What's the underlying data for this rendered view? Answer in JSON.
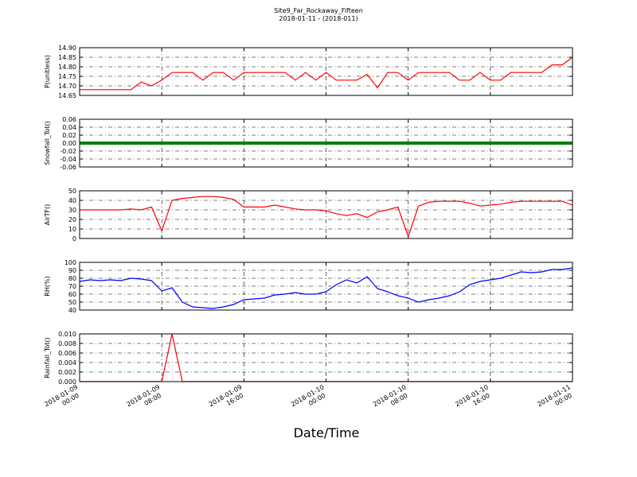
{
  "title": "Site9_Far_Rockaway_Fifteen",
  "subtitle": "2018-01-11 - (2018-011)",
  "xlabel": "Date/Time",
  "chart_data": [
    {
      "type": "line",
      "ylabel": "P(unitless)",
      "color": "#ff0000",
      "x": [
        "2018-01-09 00:00",
        "2018-01-09 01:00",
        "2018-01-09 02:00",
        "2018-01-09 03:00",
        "2018-01-09 04:00",
        "2018-01-09 05:00",
        "2018-01-09 06:00",
        "2018-01-09 07:00",
        "2018-01-09 08:00",
        "2018-01-09 09:00",
        "2018-01-09 10:00",
        "2018-01-09 11:00",
        "2018-01-09 12:00",
        "2018-01-09 13:00",
        "2018-01-09 14:00",
        "2018-01-09 15:00",
        "2018-01-09 16:00",
        "2018-01-09 17:00",
        "2018-01-09 18:00",
        "2018-01-09 19:00",
        "2018-01-09 20:00",
        "2018-01-09 21:00",
        "2018-01-09 22:00",
        "2018-01-09 23:00",
        "2018-01-10 00:00",
        "2018-01-10 01:00",
        "2018-01-10 02:00",
        "2018-01-10 03:00",
        "2018-01-10 04:00",
        "2018-01-10 05:00",
        "2018-01-10 06:00",
        "2018-01-10 07:00",
        "2018-01-10 08:00",
        "2018-01-10 09:00",
        "2018-01-10 10:00",
        "2018-01-10 11:00",
        "2018-01-10 12:00",
        "2018-01-10 13:00",
        "2018-01-10 14:00",
        "2018-01-10 15:00",
        "2018-01-10 16:00",
        "2018-01-10 17:00",
        "2018-01-10 18:00",
        "2018-01-10 19:00",
        "2018-01-10 20:00",
        "2018-01-10 21:00",
        "2018-01-10 22:00",
        "2018-01-10 23:00",
        "2018-01-11 00:00"
      ],
      "values": [
        14.68,
        14.68,
        14.68,
        14.68,
        14.68,
        14.68,
        14.72,
        14.7,
        14.73,
        14.77,
        14.77,
        14.77,
        14.73,
        14.77,
        14.77,
        14.73,
        14.77,
        14.77,
        14.77,
        14.77,
        14.77,
        14.73,
        14.77,
        14.73,
        14.77,
        14.73,
        14.73,
        14.73,
        14.76,
        14.69,
        14.77,
        14.77,
        14.73,
        14.77,
        14.77,
        14.77,
        14.77,
        14.73,
        14.73,
        14.77,
        14.73,
        14.73,
        14.77,
        14.77,
        14.77,
        14.77,
        14.81,
        14.81,
        14.85
      ],
      "xlim": [
        "2018-01-09 00:00",
        "2018-01-11 00:00"
      ],
      "ylim": [
        14.65,
        14.9
      ],
      "yticks": [
        14.65,
        {
          "value": 14.7,
          "label": "14.70"
        },
        14.75,
        {
          "value": 14.8,
          "label": "14.80"
        },
        14.85,
        {
          "value": 14.9,
          "label": "14.90"
        }
      ],
      "grid": true
    },
    {
      "type": "line",
      "ylabel": "Snowfall_Tot()",
      "color": "#008000",
      "x": [
        "2018-01-09 00:00",
        "2018-01-09 01:00",
        "2018-01-09 02:00",
        "2018-01-09 03:00",
        "2018-01-09 04:00",
        "2018-01-09 05:00",
        "2018-01-09 06:00",
        "2018-01-09 07:00",
        "2018-01-09 08:00",
        "2018-01-09 09:00",
        "2018-01-09 10:00",
        "2018-01-09 11:00",
        "2018-01-09 12:00",
        "2018-01-09 13:00",
        "2018-01-09 14:00",
        "2018-01-09 15:00",
        "2018-01-09 16:00",
        "2018-01-09 17:00",
        "2018-01-09 18:00",
        "2018-01-09 19:00",
        "2018-01-09 20:00",
        "2018-01-09 21:00",
        "2018-01-09 22:00",
        "2018-01-09 23:00",
        "2018-01-10 00:00",
        "2018-01-10 01:00",
        "2018-01-10 02:00",
        "2018-01-10 03:00",
        "2018-01-10 04:00",
        "2018-01-10 05:00",
        "2018-01-10 06:00",
        "2018-01-10 07:00",
        "2018-01-10 08:00",
        "2018-01-10 09:00",
        "2018-01-10 10:00",
        "2018-01-10 11:00",
        "2018-01-10 12:00",
        "2018-01-10 13:00",
        "2018-01-10 14:00",
        "2018-01-10 15:00",
        "2018-01-10 16:00",
        "2018-01-10 17:00",
        "2018-01-10 18:00",
        "2018-01-10 19:00",
        "2018-01-10 20:00",
        "2018-01-10 21:00",
        "2018-01-10 22:00",
        "2018-01-10 23:00",
        "2018-01-11 00:00"
      ],
      "values": [
        0,
        0,
        0,
        0,
        0,
        0,
        0,
        0,
        0,
        0,
        0,
        0,
        0,
        0,
        0,
        0,
        0,
        0,
        0,
        0,
        0,
        0,
        0,
        0,
        0,
        0,
        0,
        0,
        0,
        0,
        0,
        0,
        0,
        0,
        0,
        0,
        0,
        0,
        0,
        0,
        0,
        0,
        0,
        0,
        0,
        0,
        0,
        0,
        0
      ],
      "xlim": [
        "2018-01-09 00:00",
        "2018-01-11 00:00"
      ],
      "ylim": [
        -0.06,
        0.06
      ],
      "yticks": [
        -0.06,
        -0.04,
        -0.02,
        {
          "value": 0,
          "label": "0.00"
        },
        0.02,
        0.04,
        0.06
      ],
      "grid": true
    },
    {
      "type": "line",
      "ylabel": "AirTF()",
      "color": "#ff0000",
      "x": [
        "2018-01-09 00:00",
        "2018-01-09 01:00",
        "2018-01-09 02:00",
        "2018-01-09 03:00",
        "2018-01-09 04:00",
        "2018-01-09 05:00",
        "2018-01-09 06:00",
        "2018-01-09 07:00",
        "2018-01-09 08:00",
        "2018-01-09 09:00",
        "2018-01-09 10:00",
        "2018-01-09 11:00",
        "2018-01-09 12:00",
        "2018-01-09 13:00",
        "2018-01-09 14:00",
        "2018-01-09 15:00",
        "2018-01-09 16:00",
        "2018-01-09 17:00",
        "2018-01-09 18:00",
        "2018-01-09 19:00",
        "2018-01-09 20:00",
        "2018-01-09 21:00",
        "2018-01-09 22:00",
        "2018-01-09 23:00",
        "2018-01-10 00:00",
        "2018-01-10 01:00",
        "2018-01-10 02:00",
        "2018-01-10 03:00",
        "2018-01-10 04:00",
        "2018-01-10 05:00",
        "2018-01-10 06:00",
        "2018-01-10 07:00",
        "2018-01-10 08:00",
        "2018-01-10 09:00",
        "2018-01-10 10:00",
        "2018-01-10 11:00",
        "2018-01-10 12:00",
        "2018-01-10 13:00",
        "2018-01-10 14:00",
        "2018-01-10 15:00",
        "2018-01-10 16:00",
        "2018-01-10 17:00",
        "2018-01-10 18:00",
        "2018-01-10 19:00",
        "2018-01-10 20:00",
        "2018-01-10 21:00",
        "2018-01-10 22:00",
        "2018-01-10 23:00",
        "2018-01-11 00:00"
      ],
      "values": [
        30,
        30,
        30,
        30,
        30,
        31,
        30,
        33,
        8,
        40,
        42,
        43,
        44,
        44,
        43,
        41,
        33,
        33,
        33,
        35,
        33,
        31,
        30,
        30,
        29,
        26,
        24,
        26,
        22,
        28,
        30,
        33,
        2,
        34,
        38,
        39,
        39,
        39,
        37,
        34,
        35,
        36,
        38,
        39,
        39,
        39,
        39,
        39,
        35
      ],
      "xlim": [
        "2018-01-09 00:00",
        "2018-01-11 00:00"
      ],
      "ylim": [
        0,
        50
      ],
      "yticks": [
        0,
        10,
        20,
        30,
        40,
        50
      ],
      "grid": true
    },
    {
      "type": "line",
      "ylabel": "RH(%)",
      "color": "#0000ff",
      "x": [
        "2018-01-09 00:00",
        "2018-01-09 01:00",
        "2018-01-09 02:00",
        "2018-01-09 03:00",
        "2018-01-09 04:00",
        "2018-01-09 05:00",
        "2018-01-09 06:00",
        "2018-01-09 07:00",
        "2018-01-09 08:00",
        "2018-01-09 09:00",
        "2018-01-09 10:00",
        "2018-01-09 11:00",
        "2018-01-09 12:00",
        "2018-01-09 13:00",
        "2018-01-09 14:00",
        "2018-01-09 15:00",
        "2018-01-09 16:00",
        "2018-01-09 17:00",
        "2018-01-09 18:00",
        "2018-01-09 19:00",
        "2018-01-09 20:00",
        "2018-01-09 21:00",
        "2018-01-09 22:00",
        "2018-01-09 23:00",
        "2018-01-10 00:00",
        "2018-01-10 01:00",
        "2018-01-10 02:00",
        "2018-01-10 03:00",
        "2018-01-10 04:00",
        "2018-01-10 05:00",
        "2018-01-10 06:00",
        "2018-01-10 07:00",
        "2018-01-10 08:00",
        "2018-01-10 09:00",
        "2018-01-10 10:00",
        "2018-01-10 11:00",
        "2018-01-10 12:00",
        "2018-01-10 13:00",
        "2018-01-10 14:00",
        "2018-01-10 15:00",
        "2018-01-10 16:00",
        "2018-01-10 17:00",
        "2018-01-10 18:00",
        "2018-01-10 19:00",
        "2018-01-10 20:00",
        "2018-01-10 21:00",
        "2018-01-10 22:00",
        "2018-01-10 23:00",
        "2018-01-11 00:00"
      ],
      "values": [
        76,
        78,
        77,
        78,
        77,
        80,
        79,
        77,
        64,
        68,
        50,
        44,
        43,
        42,
        44,
        47,
        53,
        54,
        55,
        59,
        60,
        62,
        60,
        60,
        63,
        72,
        78,
        74,
        82,
        67,
        63,
        58,
        55,
        50,
        53,
        55,
        58,
        63,
        72,
        76,
        78,
        80,
        84,
        88,
        87,
        88,
        91,
        91,
        93
      ],
      "xlim": [
        "2018-01-09 00:00",
        "2018-01-11 00:00"
      ],
      "ylim": [
        40,
        100
      ],
      "yticks": [
        40,
        50,
        60,
        70,
        80,
        90,
        100
      ],
      "grid": true
    },
    {
      "type": "line",
      "ylabel": "Rainfall_Tot()",
      "color": "#ff0000",
      "x": [
        "2018-01-09 00:00",
        "2018-01-09 01:00",
        "2018-01-09 02:00",
        "2018-01-09 03:00",
        "2018-01-09 04:00",
        "2018-01-09 05:00",
        "2018-01-09 06:00",
        "2018-01-09 07:00",
        "2018-01-09 08:00",
        "2018-01-09 09:00",
        "2018-01-09 10:00",
        "2018-01-09 11:00",
        "2018-01-09 12:00",
        "2018-01-09 13:00",
        "2018-01-09 14:00",
        "2018-01-09 15:00",
        "2018-01-09 16:00",
        "2018-01-09 17:00",
        "2018-01-09 18:00",
        "2018-01-09 19:00",
        "2018-01-09 20:00",
        "2018-01-09 21:00",
        "2018-01-09 22:00",
        "2018-01-09 23:00",
        "2018-01-10 00:00",
        "2018-01-10 01:00",
        "2018-01-10 02:00",
        "2018-01-10 03:00",
        "2018-01-10 04:00",
        "2018-01-10 05:00",
        "2018-01-10 06:00",
        "2018-01-10 07:00",
        "2018-01-10 08:00",
        "2018-01-10 09:00",
        "2018-01-10 10:00",
        "2018-01-10 11:00",
        "2018-01-10 12:00",
        "2018-01-10 13:00",
        "2018-01-10 14:00",
        "2018-01-10 15:00",
        "2018-01-10 16:00",
        "2018-01-10 17:00",
        "2018-01-10 18:00",
        "2018-01-10 19:00",
        "2018-01-10 20:00",
        "2018-01-10 21:00",
        "2018-01-10 22:00",
        "2018-01-10 23:00",
        "2018-01-11 00:00"
      ],
      "values": [
        0,
        0,
        0,
        0,
        0,
        0,
        0,
        0,
        0,
        0.01,
        0,
        0,
        0,
        0,
        0,
        0,
        0,
        0,
        0,
        0,
        0,
        0,
        0,
        0,
        0,
        0,
        0,
        0,
        0,
        0,
        0,
        0,
        0,
        0,
        0,
        0,
        0,
        0,
        0,
        0,
        0,
        0,
        0,
        0,
        0,
        0,
        0,
        0,
        0
      ],
      "xlim": [
        "2018-01-09 00:00",
        "2018-01-11 00:00"
      ],
      "ylim": [
        0,
        0.01
      ],
      "yticks": [
        {
          "value": 0,
          "label": "0.000"
        },
        {
          "value": 0.002,
          "label": "0.002"
        },
        {
          "value": 0.004,
          "label": "0.004"
        },
        {
          "value": 0.006,
          "label": "0.006"
        },
        {
          "value": 0.008,
          "label": "0.008"
        },
        {
          "value": 0.01,
          "label": "0.010"
        }
      ],
      "xticks": [
        "2018-01-09 00:00",
        "2018-01-09 08:00",
        "2018-01-09 16:00",
        "2018-01-10 00:00",
        "2018-01-10 08:00",
        "2018-01-10 16:00",
        "2018-01-11 00:00"
      ],
      "grid": true
    }
  ]
}
